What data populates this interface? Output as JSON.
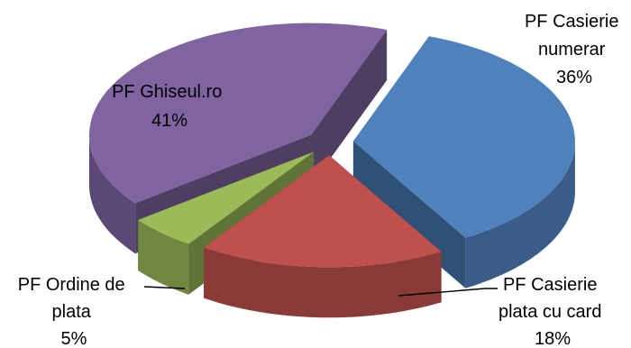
{
  "chart_data": {
    "type": "pie",
    "style": "3d-exploded",
    "title": "",
    "legend": "none",
    "slices": [
      {
        "name": "PF Casierie numerar",
        "label_lines": [
          "PF Casierie",
          "numerar"
        ],
        "percent_label": "36%",
        "value": 36,
        "color": "#4f81bd"
      },
      {
        "name": "PF Casierie plata cu card",
        "label_lines": [
          "PF Casierie",
          "plata cu card"
        ],
        "percent_label": "18%",
        "value": 18,
        "color": "#c0504d"
      },
      {
        "name": "PF Ordine de plata",
        "label_lines": [
          "PF Ordine de",
          "plata"
        ],
        "percent_label": "5%",
        "value": 5,
        "color": "#9bbb59"
      },
      {
        "name": "PF Ghiseul.ro",
        "label_lines": [
          "PF Ghiseul.ro"
        ],
        "percent_label": "41%",
        "value": 41,
        "color": "#8064a2"
      }
    ]
  }
}
